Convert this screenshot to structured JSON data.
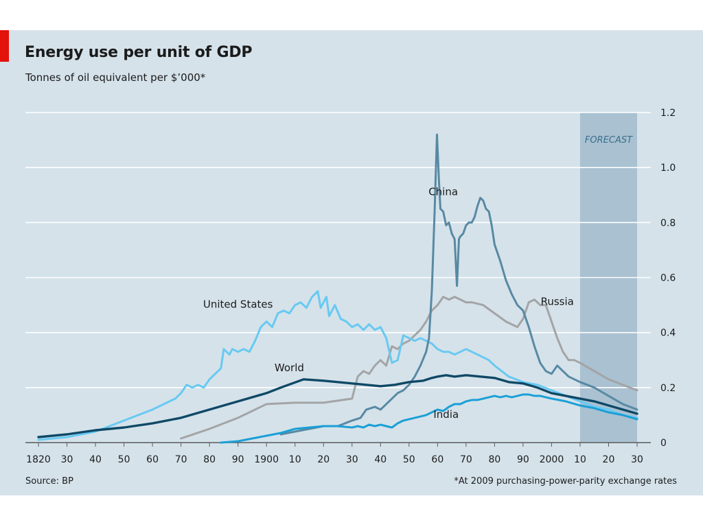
{
  "chart_data": {
    "type": "line",
    "title": "Energy use per unit of GDP",
    "subtitle": "Tonnes of oil equivalent per $’000*",
    "source": "Source: BP",
    "footnote": "*At 2009 purchasing-power-parity exchange rates",
    "forecast_label": "FORECAST",
    "forecast_range": [
      2010,
      2030
    ],
    "x_range": [
      1820,
      2030
    ],
    "ylim": [
      0,
      1.2
    ],
    "x_ticks": [
      {
        "x": 1820,
        "label": "1820"
      },
      {
        "x": 1830,
        "label": "30"
      },
      {
        "x": 1840,
        "label": "40"
      },
      {
        "x": 1850,
        "label": "50"
      },
      {
        "x": 1860,
        "label": "60"
      },
      {
        "x": 1870,
        "label": "70"
      },
      {
        "x": 1880,
        "label": "80"
      },
      {
        "x": 1890,
        "label": "90"
      },
      {
        "x": 1900,
        "label": "1900"
      },
      {
        "x": 1910,
        "label": "10"
      },
      {
        "x": 1920,
        "label": "20"
      },
      {
        "x": 1930,
        "label": "30"
      },
      {
        "x": 1940,
        "label": "40"
      },
      {
        "x": 1950,
        "label": "50"
      },
      {
        "x": 1960,
        "label": "60"
      },
      {
        "x": 1970,
        "label": "70"
      },
      {
        "x": 1980,
        "label": "80"
      },
      {
        "x": 1990,
        "label": "90"
      },
      {
        "x": 2000,
        "label": "2000"
      },
      {
        "x": 2010,
        "label": "10"
      },
      {
        "x": 2020,
        "label": "20"
      },
      {
        "x": 2030,
        "label": "30"
      }
    ],
    "y_ticks": [
      {
        "y": 0,
        "label": "0"
      },
      {
        "y": 0.2,
        "label": "0.2"
      },
      {
        "y": 0.4,
        "label": "0.4"
      },
      {
        "y": 0.6,
        "label": "0.6"
      },
      {
        "y": 0.8,
        "label": "0.8"
      },
      {
        "y": 1.0,
        "label": "1.0"
      },
      {
        "y": 1.2,
        "label": "1.2"
      }
    ],
    "series": [
      {
        "name": "Russia",
        "color": "#a3a4a6",
        "label_pos": [
          2002,
          0.5
        ],
        "points": [
          [
            1870,
            0.015
          ],
          [
            1880,
            0.05
          ],
          [
            1890,
            0.09
          ],
          [
            1900,
            0.14
          ],
          [
            1910,
            0.145
          ],
          [
            1920,
            0.145
          ],
          [
            1930,
            0.16
          ],
          [
            1932,
            0.24
          ],
          [
            1934,
            0.26
          ],
          [
            1936,
            0.25
          ],
          [
            1938,
            0.28
          ],
          [
            1940,
            0.3
          ],
          [
            1942,
            0.28
          ],
          [
            1944,
            0.35
          ],
          [
            1946,
            0.34
          ],
          [
            1948,
            0.36
          ],
          [
            1950,
            0.37
          ],
          [
            1952,
            0.39
          ],
          [
            1954,
            0.41
          ],
          [
            1956,
            0.44
          ],
          [
            1958,
            0.48
          ],
          [
            1960,
            0.5
          ],
          [
            1962,
            0.53
          ],
          [
            1964,
            0.52
          ],
          [
            1966,
            0.53
          ],
          [
            1968,
            0.52
          ],
          [
            1970,
            0.51
          ],
          [
            1972,
            0.51
          ],
          [
            1976,
            0.5
          ],
          [
            1980,
            0.47
          ],
          [
            1984,
            0.44
          ],
          [
            1986,
            0.43
          ],
          [
            1988,
            0.42
          ],
          [
            1990,
            0.45
          ],
          [
            1992,
            0.51
          ],
          [
            1994,
            0.52
          ],
          [
            1996,
            0.5
          ],
          [
            1998,
            0.5
          ],
          [
            2000,
            0.44
          ],
          [
            2002,
            0.38
          ],
          [
            2004,
            0.33
          ],
          [
            2006,
            0.3
          ],
          [
            2008,
            0.3
          ],
          [
            2010,
            0.29
          ],
          [
            2015,
            0.26
          ],
          [
            2020,
            0.23
          ],
          [
            2025,
            0.21
          ],
          [
            2030,
            0.19
          ]
        ]
      },
      {
        "name": "United States",
        "color": "#68c9f2",
        "label_pos": [
          1890,
          0.49
        ],
        "points": [
          [
            1820,
            0.01
          ],
          [
            1830,
            0.02
          ],
          [
            1840,
            0.04
          ],
          [
            1850,
            0.08
          ],
          [
            1860,
            0.12
          ],
          [
            1868,
            0.16
          ],
          [
            1870,
            0.18
          ],
          [
            1872,
            0.21
          ],
          [
            1874,
            0.2
          ],
          [
            1876,
            0.21
          ],
          [
            1878,
            0.2
          ],
          [
            1880,
            0.23
          ],
          [
            1882,
            0.25
          ],
          [
            1884,
            0.27
          ],
          [
            1885,
            0.34
          ],
          [
            1887,
            0.32
          ],
          [
            1888,
            0.34
          ],
          [
            1890,
            0.33
          ],
          [
            1892,
            0.34
          ],
          [
            1894,
            0.33
          ],
          [
            1896,
            0.37
          ],
          [
            1898,
            0.42
          ],
          [
            1900,
            0.44
          ],
          [
            1902,
            0.42
          ],
          [
            1904,
            0.47
          ],
          [
            1906,
            0.48
          ],
          [
            1908,
            0.47
          ],
          [
            1910,
            0.5
          ],
          [
            1912,
            0.51
          ],
          [
            1914,
            0.49
          ],
          [
            1916,
            0.53
          ],
          [
            1918,
            0.55
          ],
          [
            1919,
            0.49
          ],
          [
            1921,
            0.53
          ],
          [
            1922,
            0.46
          ],
          [
            1924,
            0.5
          ],
          [
            1926,
            0.45
          ],
          [
            1928,
            0.44
          ],
          [
            1930,
            0.42
          ],
          [
            1932,
            0.43
          ],
          [
            1934,
            0.41
          ],
          [
            1936,
            0.43
          ],
          [
            1938,
            0.41
          ],
          [
            1940,
            0.42
          ],
          [
            1942,
            0.38
          ],
          [
            1944,
            0.29
          ],
          [
            1946,
            0.3
          ],
          [
            1948,
            0.39
          ],
          [
            1950,
            0.38
          ],
          [
            1952,
            0.37
          ],
          [
            1954,
            0.38
          ],
          [
            1956,
            0.37
          ],
          [
            1958,
            0.36
          ],
          [
            1960,
            0.34
          ],
          [
            1962,
            0.33
          ],
          [
            1964,
            0.33
          ],
          [
            1966,
            0.32
          ],
          [
            1968,
            0.33
          ],
          [
            1970,
            0.34
          ],
          [
            1972,
            0.33
          ],
          [
            1974,
            0.32
          ],
          [
            1976,
            0.31
          ],
          [
            1978,
            0.3
          ],
          [
            1980,
            0.28
          ],
          [
            1985,
            0.24
          ],
          [
            1990,
            0.22
          ],
          [
            1995,
            0.21
          ],
          [
            2000,
            0.19
          ],
          [
            2005,
            0.17
          ],
          [
            2010,
            0.15
          ],
          [
            2015,
            0.13
          ],
          [
            2020,
            0.12
          ],
          [
            2025,
            0.1
          ],
          [
            2030,
            0.09
          ]
        ]
      },
      {
        "name": "China",
        "color": "#5889a3",
        "label_pos": [
          1962,
          0.9
        ],
        "points": [
          [
            1905,
            0.03
          ],
          [
            1910,
            0.04
          ],
          [
            1915,
            0.05
          ],
          [
            1920,
            0.06
          ],
          [
            1925,
            0.06
          ],
          [
            1930,
            0.08
          ],
          [
            1933,
            0.09
          ],
          [
            1935,
            0.12
          ],
          [
            1938,
            0.13
          ],
          [
            1940,
            0.12
          ],
          [
            1942,
            0.14
          ],
          [
            1944,
            0.16
          ],
          [
            1946,
            0.18
          ],
          [
            1948,
            0.19
          ],
          [
            1950,
            0.21
          ],
          [
            1952,
            0.24
          ],
          [
            1954,
            0.28
          ],
          [
            1956,
            0.33
          ],
          [
            1957,
            0.38
          ],
          [
            1958,
            0.55
          ],
          [
            1959,
            0.85
          ],
          [
            1959.8,
            1.12
          ],
          [
            1960.5,
            0.95
          ],
          [
            1961,
            0.85
          ],
          [
            1962,
            0.84
          ],
          [
            1963,
            0.79
          ],
          [
            1964,
            0.8
          ],
          [
            1965,
            0.76
          ],
          [
            1966,
            0.74
          ],
          [
            1966.8,
            0.57
          ],
          [
            1967.5,
            0.74
          ],
          [
            1968,
            0.75
          ],
          [
            1969,
            0.76
          ],
          [
            1970,
            0.79
          ],
          [
            1971,
            0.8
          ],
          [
            1972,
            0.8
          ],
          [
            1973,
            0.82
          ],
          [
            1974,
            0.86
          ],
          [
            1975,
            0.89
          ],
          [
            1976,
            0.88
          ],
          [
            1977,
            0.85
          ],
          [
            1978,
            0.84
          ],
          [
            1979,
            0.79
          ],
          [
            1980,
            0.72
          ],
          [
            1982,
            0.66
          ],
          [
            1984,
            0.59
          ],
          [
            1986,
            0.54
          ],
          [
            1988,
            0.5
          ],
          [
            1990,
            0.48
          ],
          [
            1992,
            0.42
          ],
          [
            1994,
            0.35
          ],
          [
            1996,
            0.29
          ],
          [
            1998,
            0.26
          ],
          [
            2000,
            0.25
          ],
          [
            2002,
            0.28
          ],
          [
            2004,
            0.26
          ],
          [
            2006,
            0.24
          ],
          [
            2010,
            0.22
          ],
          [
            2015,
            0.2
          ],
          [
            2020,
            0.17
          ],
          [
            2025,
            0.14
          ],
          [
            2030,
            0.12
          ]
        ]
      },
      {
        "name": "India",
        "color": "#1a9fd6",
        "label_pos": [
          1963,
          0.09
        ],
        "points": [
          [
            1884,
            0.0
          ],
          [
            1890,
            0.005
          ],
          [
            1895,
            0.015
          ],
          [
            1900,
            0.025
          ],
          [
            1905,
            0.035
          ],
          [
            1910,
            0.05
          ],
          [
            1915,
            0.055
          ],
          [
            1920,
            0.06
          ],
          [
            1925,
            0.06
          ],
          [
            1930,
            0.055
          ],
          [
            1932,
            0.06
          ],
          [
            1934,
            0.055
          ],
          [
            1936,
            0.065
          ],
          [
            1938,
            0.06
          ],
          [
            1940,
            0.065
          ],
          [
            1942,
            0.06
          ],
          [
            1944,
            0.055
          ],
          [
            1946,
            0.07
          ],
          [
            1948,
            0.08
          ],
          [
            1950,
            0.085
          ],
          [
            1952,
            0.09
          ],
          [
            1954,
            0.095
          ],
          [
            1956,
            0.1
          ],
          [
            1958,
            0.11
          ],
          [
            1960,
            0.12
          ],
          [
            1962,
            0.115
          ],
          [
            1964,
            0.13
          ],
          [
            1966,
            0.14
          ],
          [
            1968,
            0.14
          ],
          [
            1970,
            0.15
          ],
          [
            1972,
            0.155
          ],
          [
            1974,
            0.155
          ],
          [
            1976,
            0.16
          ],
          [
            1978,
            0.165
          ],
          [
            1980,
            0.17
          ],
          [
            1982,
            0.165
          ],
          [
            1984,
            0.17
          ],
          [
            1986,
            0.165
          ],
          [
            1988,
            0.17
          ],
          [
            1990,
            0.175
          ],
          [
            1992,
            0.175
          ],
          [
            1994,
            0.17
          ],
          [
            1996,
            0.17
          ],
          [
            1998,
            0.165
          ],
          [
            2000,
            0.16
          ],
          [
            2005,
            0.15
          ],
          [
            2010,
            0.135
          ],
          [
            2015,
            0.125
          ],
          [
            2020,
            0.11
          ],
          [
            2025,
            0.1
          ],
          [
            2030,
            0.085
          ]
        ]
      },
      {
        "name": "World",
        "color": "#0f4966",
        "label_pos": [
          1908,
          0.26
        ],
        "points": [
          [
            1820,
            0.02
          ],
          [
            1830,
            0.03
          ],
          [
            1840,
            0.045
          ],
          [
            1850,
            0.055
          ],
          [
            1860,
            0.07
          ],
          [
            1870,
            0.09
          ],
          [
            1880,
            0.12
          ],
          [
            1890,
            0.15
          ],
          [
            1900,
            0.18
          ],
          [
            1905,
            0.2
          ],
          [
            1913,
            0.23
          ],
          [
            1920,
            0.225
          ],
          [
            1930,
            0.215
          ],
          [
            1940,
            0.205
          ],
          [
            1945,
            0.21
          ],
          [
            1950,
            0.22
          ],
          [
            1955,
            0.225
          ],
          [
            1958,
            0.235
          ],
          [
            1960,
            0.24
          ],
          [
            1963,
            0.245
          ],
          [
            1966,
            0.24
          ],
          [
            1970,
            0.245
          ],
          [
            1975,
            0.24
          ],
          [
            1980,
            0.235
          ],
          [
            1985,
            0.22
          ],
          [
            1990,
            0.215
          ],
          [
            1995,
            0.2
          ],
          [
            2000,
            0.18
          ],
          [
            2005,
            0.17
          ],
          [
            2010,
            0.16
          ],
          [
            2015,
            0.15
          ],
          [
            2020,
            0.135
          ],
          [
            2025,
            0.12
          ],
          [
            2030,
            0.105
          ]
        ]
      }
    ]
  }
}
